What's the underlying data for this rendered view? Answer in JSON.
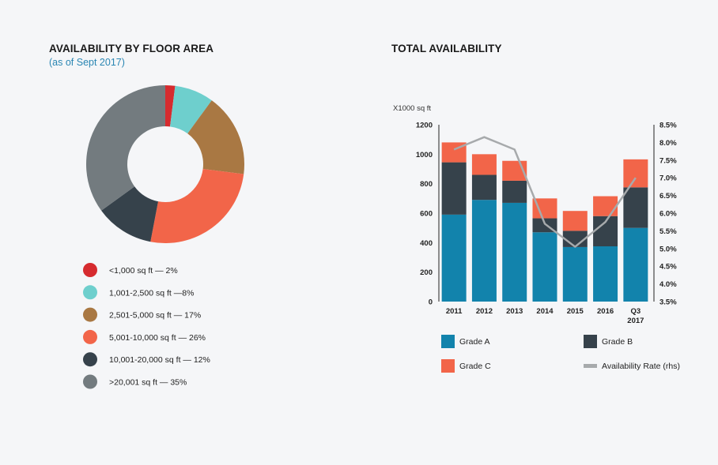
{
  "left": {
    "title": "AVAILABILITY BY FLOOR AREA",
    "subtitle": "(as of Sept 2017)"
  },
  "right": {
    "title": "TOTAL AVAILABILITY",
    "unit_label": "X1000 sq ft"
  },
  "chart_data": [
    {
      "type": "pie",
      "style": "donut",
      "title": "AVAILABILITY BY FLOOR AREA",
      "subtitle": "(as of Sept 2017)",
      "slices": [
        {
          "label": "<1,000 sq ft — 2%",
          "value": 2,
          "color": "#d62b2f"
        },
        {
          "label": "1,001-2,500 sq ft —8%",
          "value": 8,
          "color": "#6ecfcd"
        },
        {
          "label": "2,501-5,000 sq ft — 17%",
          "value": 17,
          "color": "#a97843"
        },
        {
          "label": "5,001-10,000 sq ft — 26%",
          "value": 26,
          "color": "#f26549"
        },
        {
          "label": "10,001-20,000 sq ft — 12%",
          "value": 12,
          "color": "#36424b"
        },
        {
          "label": ">20,001 sq ft — 35%",
          "value": 35,
          "color": "#737b7f"
        }
      ]
    },
    {
      "type": "bar",
      "stacked": true,
      "title": "TOTAL AVAILABILITY",
      "ylabel": "X1000 sq ft",
      "categories": [
        "2011",
        "2012",
        "2013",
        "2014",
        "2015",
        "2016",
        "Q3 2017"
      ],
      "ylim": [
        0,
        1200
      ],
      "yticks": [
        0,
        200,
        400,
        600,
        800,
        1000,
        1200
      ],
      "series": [
        {
          "name": "Grade A",
          "color": "#1283ac",
          "values": [
            590,
            690,
            670,
            470,
            370,
            375,
            500
          ]
        },
        {
          "name": "Grade B",
          "color": "#36424b",
          "values": [
            355,
            170,
            150,
            95,
            110,
            205,
            275
          ]
        },
        {
          "name": "Grade C",
          "color": "#f26549",
          "values": [
            135,
            140,
            135,
            135,
            135,
            135,
            190
          ]
        }
      ],
      "line_series": {
        "name": "Availability Rate (rhs)",
        "color": "#a7aaac",
        "values": [
          7.8,
          8.15,
          7.8,
          5.7,
          5.05,
          5.75,
          7.0
        ]
      },
      "y2lim": [
        3.5,
        8.5
      ],
      "y2ticks": [
        "3.5%",
        "4.0%",
        "4.5%",
        "5.0%",
        "5.5%",
        "6.0%",
        "6.5%",
        "7.0%",
        "7.5%",
        "8.0%",
        "8.5%"
      ],
      "legend": [
        "Grade A",
        "Grade B",
        "Grade C",
        "Availability Rate (rhs)"
      ]
    }
  ]
}
